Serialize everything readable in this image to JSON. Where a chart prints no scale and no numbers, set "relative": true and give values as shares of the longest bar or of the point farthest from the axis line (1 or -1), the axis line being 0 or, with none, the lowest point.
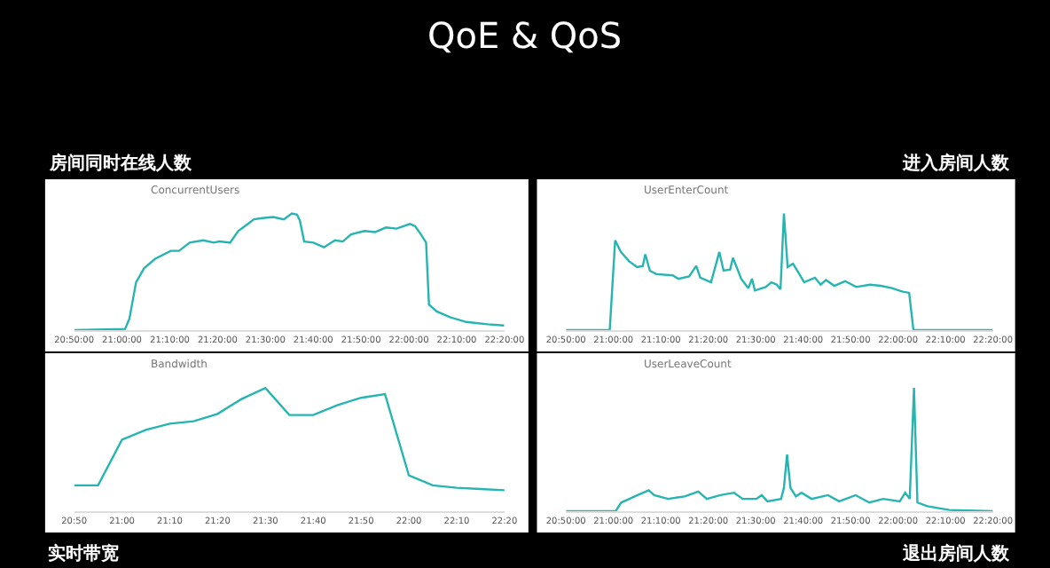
{
  "chart_data": [
    {
      "type": "other",
      "title": "QoE & QoS"
    },
    {
      "type": "line",
      "title": "房间同时在线人数",
      "subtitle": "ConcurrentUsers",
      "relative": true,
      "xlim": [
        20.8333,
        22.3333
      ],
      "xticks": [
        {
          "value": 20.8333,
          "label": "20:50:00"
        },
        {
          "value": 21.0,
          "label": "21:00:00"
        },
        {
          "value": 21.1667,
          "label": "21:10:00"
        },
        {
          "value": 21.3333,
          "label": "21:20:00"
        },
        {
          "value": 21.5,
          "label": "21:30:00"
        },
        {
          "value": 21.6667,
          "label": "21:40:00"
        },
        {
          "value": 21.8333,
          "label": "21:50:00"
        },
        {
          "value": 22.0,
          "label": "22:00:00"
        },
        {
          "value": 22.1667,
          "label": "22:10:00"
        },
        {
          "value": 22.3333,
          "label": "22:20:00"
        }
      ],
      "x": [
        20.8333,
        21.011,
        21.026,
        21.049,
        21.077,
        21.115,
        21.17,
        21.199,
        21.236,
        21.283,
        21.32,
        21.339,
        21.377,
        21.405,
        21.433,
        21.46,
        21.489,
        21.527,
        21.564,
        21.592,
        21.61,
        21.62,
        21.635,
        21.667,
        21.704,
        21.742,
        21.77,
        21.798,
        21.845,
        21.882,
        21.92,
        21.957,
        22.004,
        22.022,
        22.042,
        22.06,
        22.07,
        22.097,
        22.145,
        22.2,
        22.275,
        22.332
      ],
      "series": [
        {
          "color": "#26b5b0",
          "values": [
            0,
            0.01,
            0.1,
            0.41,
            0.53,
            0.61,
            0.68,
            0.68,
            0.75,
            0.77,
            0.75,
            0.76,
            0.75,
            0.85,
            0.9,
            0.95,
            0.96,
            0.97,
            0.95,
            1.0,
            0.99,
            0.94,
            0.76,
            0.75,
            0.71,
            0.77,
            0.76,
            0.82,
            0.85,
            0.84,
            0.88,
            0.87,
            0.91,
            0.89,
            0.82,
            0.75,
            0.22,
            0.16,
            0.11,
            0.07,
            0.05,
            0.04
          ]
        }
      ]
    },
    {
      "type": "line",
      "title": "进入房间人数",
      "subtitle": "UserEnterCount",
      "relative": true,
      "xlim": [
        20.8333,
        22.3333
      ],
      "xticks": [
        {
          "value": 20.8333,
          "label": "20:50:00"
        },
        {
          "value": 21.0,
          "label": "21:00:00"
        },
        {
          "value": 21.1667,
          "label": "21:10:00"
        },
        {
          "value": 21.3333,
          "label": "21:20:00"
        },
        {
          "value": 21.5,
          "label": "21:30:00"
        },
        {
          "value": 21.6667,
          "label": "21:40:00"
        },
        {
          "value": 21.8333,
          "label": "21:50:00"
        },
        {
          "value": 22.0,
          "label": "22:00:00"
        },
        {
          "value": 22.1667,
          "label": "22:10:00"
        },
        {
          "value": 22.3333,
          "label": "22:20:00"
        }
      ],
      "x": [
        20.8333,
        20.987,
        21.006,
        21.026,
        21.055,
        21.083,
        21.103,
        21.112,
        21.128,
        21.151,
        21.208,
        21.228,
        21.266,
        21.291,
        21.305,
        21.343,
        21.372,
        21.387,
        21.41,
        21.42,
        21.449,
        21.474,
        21.487,
        21.497,
        21.535,
        21.555,
        21.574,
        21.587,
        21.599,
        21.612,
        21.631,
        21.651,
        21.67,
        21.708,
        21.728,
        21.747,
        21.776,
        21.814,
        21.853,
        21.901,
        21.939,
        21.978,
        22.016,
        22.039,
        22.054,
        22.333
      ],
      "series": [
        {
          "color": "#26b5b0",
          "values": [
            0,
            0,
            0.77,
            0.67,
            0.59,
            0.54,
            0.55,
            0.65,
            0.51,
            0.48,
            0.47,
            0.44,
            0.46,
            0.55,
            0.45,
            0.41,
            0.67,
            0.51,
            0.52,
            0.62,
            0.44,
            0.36,
            0.44,
            0.34,
            0.37,
            0.41,
            0.39,
            0.35,
            1.0,
            0.54,
            0.57,
            0.49,
            0.41,
            0.45,
            0.39,
            0.43,
            0.38,
            0.42,
            0.37,
            0.39,
            0.38,
            0.36,
            0.33,
            0.32,
            0,
            0
          ]
        }
      ]
    },
    {
      "type": "line",
      "title": "实时带宽",
      "subtitle": "Bandwidth",
      "relative": true,
      "xlim": [
        20.8333,
        22.3333
      ],
      "xticks": [
        {
          "value": 20.8333,
          "label": "20:50"
        },
        {
          "value": 21.0,
          "label": "21:00"
        },
        {
          "value": 21.1667,
          "label": "21:10"
        },
        {
          "value": 21.3333,
          "label": "21:20"
        },
        {
          "value": 21.5,
          "label": "21:30"
        },
        {
          "value": 21.6667,
          "label": "21:40"
        },
        {
          "value": 21.8333,
          "label": "21:50"
        },
        {
          "value": 22.0,
          "label": "22:00"
        },
        {
          "value": 22.1667,
          "label": "22:10"
        },
        {
          "value": 22.3333,
          "label": "22:20"
        }
      ],
      "x": [
        20.8333,
        20.9167,
        21.0,
        21.0833,
        21.1667,
        21.25,
        21.3333,
        21.4167,
        21.5,
        21.5833,
        21.6667,
        21.75,
        21.8333,
        21.9167,
        22.0,
        22.0833,
        22.1667,
        22.25,
        22.3333
      ],
      "series": [
        {
          "color": "#26b5b0",
          "values": [
            0.21,
            0.21,
            0.58,
            0.66,
            0.71,
            0.73,
            0.79,
            0.91,
            1.0,
            0.78,
            0.78,
            0.86,
            0.92,
            0.95,
            0.29,
            0.21,
            0.19,
            0.18,
            0.17
          ]
        }
      ]
    },
    {
      "type": "line",
      "title": "退出房间人数",
      "subtitle": "UserLeaveCount",
      "relative": true,
      "xlim": [
        20.8333,
        22.3333
      ],
      "xticks": [
        {
          "value": 20.8333,
          "label": "20:50:00"
        },
        {
          "value": 21.0,
          "label": "21:00:00"
        },
        {
          "value": 21.1667,
          "label": "21:10:00"
        },
        {
          "value": 21.3333,
          "label": "21:20:00"
        },
        {
          "value": 21.5,
          "label": "21:30:00"
        },
        {
          "value": 21.6667,
          "label": "21:40:00"
        },
        {
          "value": 21.8333,
          "label": "21:50:00"
        },
        {
          "value": 22.0,
          "label": "22:00:00"
        },
        {
          "value": 22.1667,
          "label": "22:10:00"
        },
        {
          "value": 22.3333,
          "label": "22:20:00"
        }
      ],
      "x": [
        20.8333,
        21.008,
        21.027,
        21.056,
        21.085,
        21.105,
        21.124,
        21.143,
        21.192,
        21.25,
        21.298,
        21.328,
        21.376,
        21.424,
        21.454,
        21.502,
        21.521,
        21.541,
        21.589,
        21.599,
        21.61,
        21.622,
        21.641,
        21.661,
        21.696,
        21.754,
        21.793,
        21.851,
        21.899,
        21.948,
        22.006,
        22.025,
        22.041,
        22.056,
        22.068,
        22.103,
        22.18,
        22.333
      ],
      "series": [
        {
          "color": "#26b5b0",
          "values": [
            0,
            0,
            0.07,
            0.1,
            0.13,
            0.15,
            0.17,
            0.13,
            0.1,
            0.12,
            0.16,
            0.1,
            0.13,
            0.15,
            0.1,
            0.1,
            0.13,
            0.08,
            0.1,
            0.19,
            0.46,
            0.19,
            0.12,
            0.15,
            0.1,
            0.13,
            0.08,
            0.13,
            0.07,
            0.1,
            0.08,
            0.15,
            0.1,
            1.0,
            0.07,
            0.04,
            0.01,
            0
          ]
        }
      ]
    }
  ]
}
